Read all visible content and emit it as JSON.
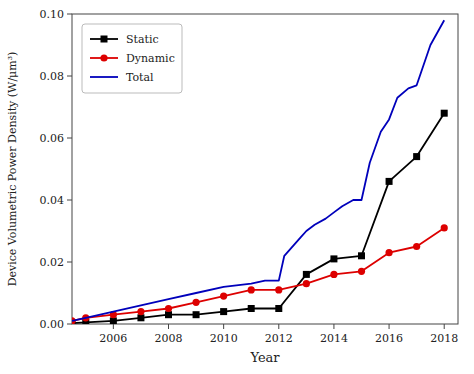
{
  "chart_data": {
    "type": "line",
    "xlabel": "Year",
    "ylabel": "Device Volumetric Power Density (W/μm³)",
    "xlim": [
      2004.5,
      2018.5
    ],
    "ylim": [
      0,
      0.1
    ],
    "xticks": [
      2006,
      2008,
      2010,
      2012,
      2014,
      2016,
      2018
    ],
    "yticks": [
      {
        "value": 0,
        "label": "0.00"
      },
      0.02,
      0.04,
      0.06,
      0.08,
      {
        "value": 0.1,
        "label": "0.10"
      }
    ],
    "grid": false,
    "legend": "upper-left",
    "series": [
      {
        "name": "Static",
        "color": "#000000",
        "marker": "square",
        "x": [
          2004.5,
          2005,
          2006,
          2007,
          2008,
          2009,
          2010,
          2011,
          2012,
          2013,
          2014,
          2015,
          2016,
          2017,
          2018
        ],
        "values": [
          0.0003,
          0.0005,
          0.001,
          0.002,
          0.003,
          0.003,
          0.004,
          0.005,
          0.005,
          0.016,
          0.021,
          0.022,
          0.046,
          0.054,
          0.068
        ]
      },
      {
        "name": "Dynamic",
        "color": "#dd0000",
        "marker": "circle",
        "x": [
          2004.5,
          2005,
          2006,
          2007,
          2008,
          2009,
          2010,
          2011,
          2012,
          2013,
          2014,
          2015,
          2016,
          2017,
          2018
        ],
        "values": [
          0.001,
          0.002,
          0.003,
          0.004,
          0.005,
          0.007,
          0.009,
          0.011,
          0.011,
          0.013,
          0.016,
          0.017,
          0.023,
          0.025,
          0.031
        ]
      },
      {
        "name": "Total",
        "color": "#0000bb",
        "x": [
          2004.5,
          2005,
          2006,
          2007,
          2008,
          2009,
          2010,
          2011,
          2011.5,
          2012,
          2012.2,
          2012.8,
          2013,
          2013.3,
          2013.7,
          2014,
          2014.3,
          2014.7,
          2015,
          2015.3,
          2015.7,
          2016,
          2016.3,
          2016.7,
          2017,
          2017.5,
          2018
        ],
        "values": [
          0.001,
          0.002,
          0.004,
          0.006,
          0.008,
          0.01,
          0.012,
          0.013,
          0.014,
          0.014,
          0.022,
          0.028,
          0.03,
          0.032,
          0.034,
          0.036,
          0.038,
          0.04,
          0.04,
          0.052,
          0.062,
          0.066,
          0.073,
          0.076,
          0.077,
          0.09,
          0.098
        ]
      }
    ]
  }
}
